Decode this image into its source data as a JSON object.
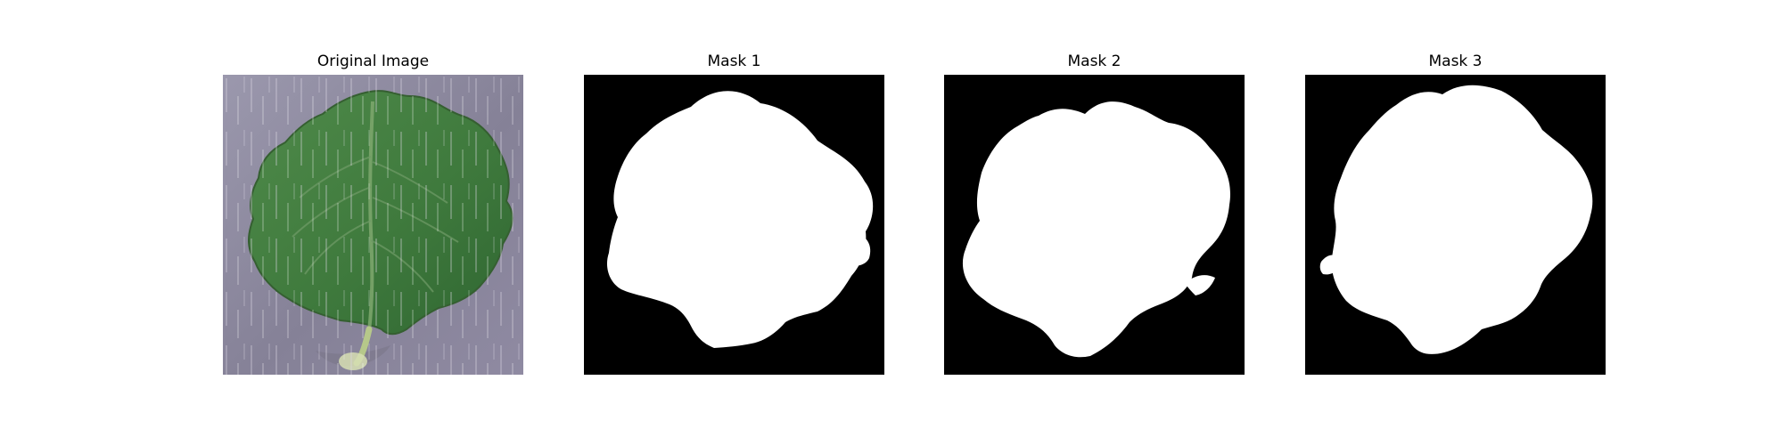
{
  "panels": [
    {
      "title": "Original Image"
    },
    {
      "title": "Mask 1"
    },
    {
      "title": "Mask 2"
    },
    {
      "title": "Mask 3"
    }
  ],
  "colors": {
    "background": "#ffffff",
    "mask_foreground": "#ffffff",
    "mask_background": "#000000",
    "leaf_green": "#4f8a4a",
    "surface_gray": "#8d8aa0"
  }
}
